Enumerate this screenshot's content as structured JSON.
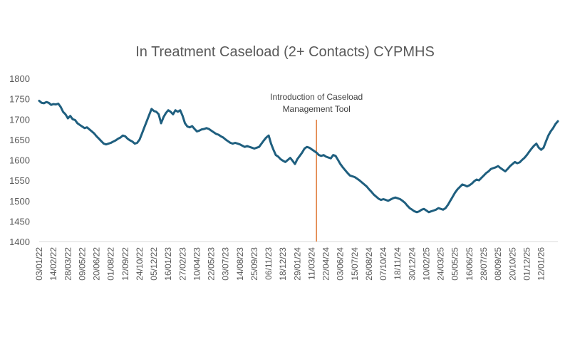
{
  "chart_data": {
    "type": "line",
    "title": "In Treatment Caseload (2+ Contacts) CYPMHS",
    "xlabel": "",
    "ylabel": "",
    "ylim": [
      1400,
      1800
    ],
    "yticks": [
      1400,
      1450,
      1500,
      1550,
      1600,
      1650,
      1700,
      1750,
      1800
    ],
    "grid": false,
    "legend": "none",
    "x_tick_labels": [
      "03/01/22",
      "14/02/22",
      "28/03/22",
      "09/05/22",
      "20/06/22",
      "01/08/22",
      "12/09/22",
      "24/10/22",
      "05/12/22",
      "16/01/23",
      "27/02/23",
      "10/04/23",
      "22/05/23",
      "03/07/23",
      "14/08/23",
      "25/09/23",
      "06/11/23",
      "18/12/23",
      "29/01/24",
      "11/03/24",
      "22/04/24",
      "03/06/24",
      "15/07/24",
      "26/08/24",
      "07/10/24",
      "18/11/24",
      "30/12/24",
      "10/02/25",
      "24/03/25",
      "05/05/25",
      "16/06/25",
      "28/07/25",
      "08/09/25",
      "20/10/25",
      "01/12/25",
      "12/01/26"
    ],
    "line_color": "#1f5f7f",
    "annotation": {
      "text_line1": "Introduction of Caseload",
      "text_line2": "Management Tool",
      "at_week": 116,
      "color": "#e07b39"
    },
    "series": [
      {
        "values": [
          1745,
          1740,
          1739,
          1742,
          1740,
          1735,
          1737,
          1736,
          1738,
          1730,
          1718,
          1712,
          1702,
          1708,
          1700,
          1698,
          1690,
          1686,
          1682,
          1678,
          1680,
          1675,
          1670,
          1665,
          1658,
          1652,
          1646,
          1640,
          1638,
          1640,
          1642,
          1645,
          1648,
          1652,
          1655,
          1660,
          1658,
          1652,
          1648,
          1645,
          1640,
          1642,
          1650,
          1665,
          1680,
          1695,
          1710,
          1725,
          1720,
          1718,
          1712,
          1690,
          1705,
          1715,
          1722,
          1718,
          1712,
          1722,
          1718,
          1722,
          1708,
          1690,
          1682,
          1680,
          1683,
          1676,
          1670,
          1672,
          1675,
          1676,
          1678,
          1676,
          1672,
          1668,
          1664,
          1662,
          1658,
          1655,
          1650,
          1646,
          1642,
          1640,
          1642,
          1640,
          1638,
          1635,
          1632,
          1634,
          1632,
          1630,
          1628,
          1630,
          1632,
          1640,
          1648,
          1655,
          1660,
          1640,
          1625,
          1612,
          1608,
          1602,
          1598,
          1595,
          1600,
          1605,
          1598,
          1590,
          1602,
          1610,
          1618,
          1628,
          1632,
          1630,
          1626,
          1622,
          1618,
          1612,
          1610,
          1612,
          1608,
          1606,
          1604,
          1612,
          1610,
          1600,
          1590,
          1582,
          1575,
          1568,
          1562,
          1560,
          1558,
          1554,
          1550,
          1545,
          1540,
          1535,
          1528,
          1522,
          1515,
          1510,
          1505,
          1502,
          1504,
          1502,
          1500,
          1503,
          1506,
          1508,
          1506,
          1504,
          1500,
          1495,
          1488,
          1482,
          1478,
          1474,
          1472,
          1474,
          1478,
          1480,
          1476,
          1472,
          1474,
          1476,
          1478,
          1482,
          1480,
          1478,
          1482,
          1490,
          1500,
          1510,
          1520,
          1528,
          1534,
          1540,
          1538,
          1535,
          1538,
          1542,
          1548,
          1552,
          1550,
          1556,
          1562,
          1568,
          1572,
          1578,
          1580,
          1582,
          1585,
          1580,
          1576,
          1572,
          1578,
          1585,
          1590,
          1595,
          1592,
          1594,
          1600,
          1605,
          1612,
          1620,
          1628,
          1635,
          1640,
          1630,
          1625,
          1630,
          1645,
          1660,
          1670,
          1678,
          1688,
          1695
        ]
      }
    ]
  }
}
